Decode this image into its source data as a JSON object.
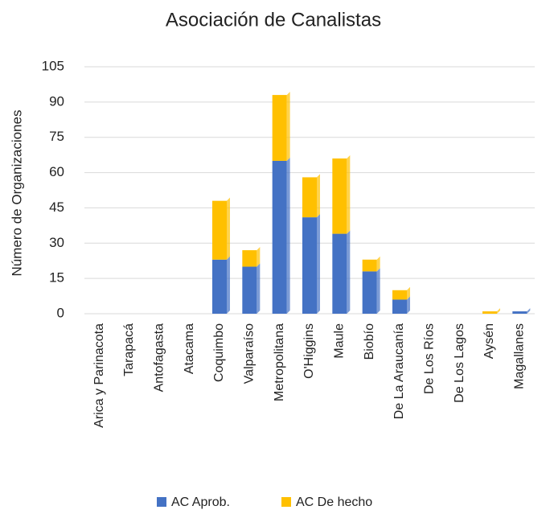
{
  "chart_data": {
    "type": "stacked_bar",
    "title": "Asociación de Canalistas",
    "y_label": "Número de Organizaciones",
    "categories": [
      "Arica y Parinacota",
      "Tarapacá",
      "Antofagasta",
      "Atacama",
      "Coquimbo",
      "Valparaíso",
      "Metropolitana",
      "O'Higgins",
      "Maule",
      "Biobío",
      "De La Araucanía",
      "De Los Ríos",
      "De Los Lagos",
      "Aysén",
      "Magallanes"
    ],
    "series": [
      {
        "name": "AC Aprob.",
        "color": "#4472c4",
        "values": [
          0,
          0,
          0,
          0,
          23,
          20,
          65,
          41,
          34,
          18,
          6,
          0,
          0,
          0,
          1
        ]
      },
      {
        "name": "AC De hecho",
        "color": "#ffc000",
        "values": [
          0,
          0,
          0,
          0,
          25,
          7,
          28,
          17,
          32,
          5,
          4,
          0,
          0,
          1,
          0
        ]
      }
    ],
    "ylim": [
      0,
      105
    ],
    "yticks": [
      0,
      15,
      30,
      45,
      60,
      75,
      90,
      105
    ],
    "grid": true,
    "legend": "bottom"
  }
}
